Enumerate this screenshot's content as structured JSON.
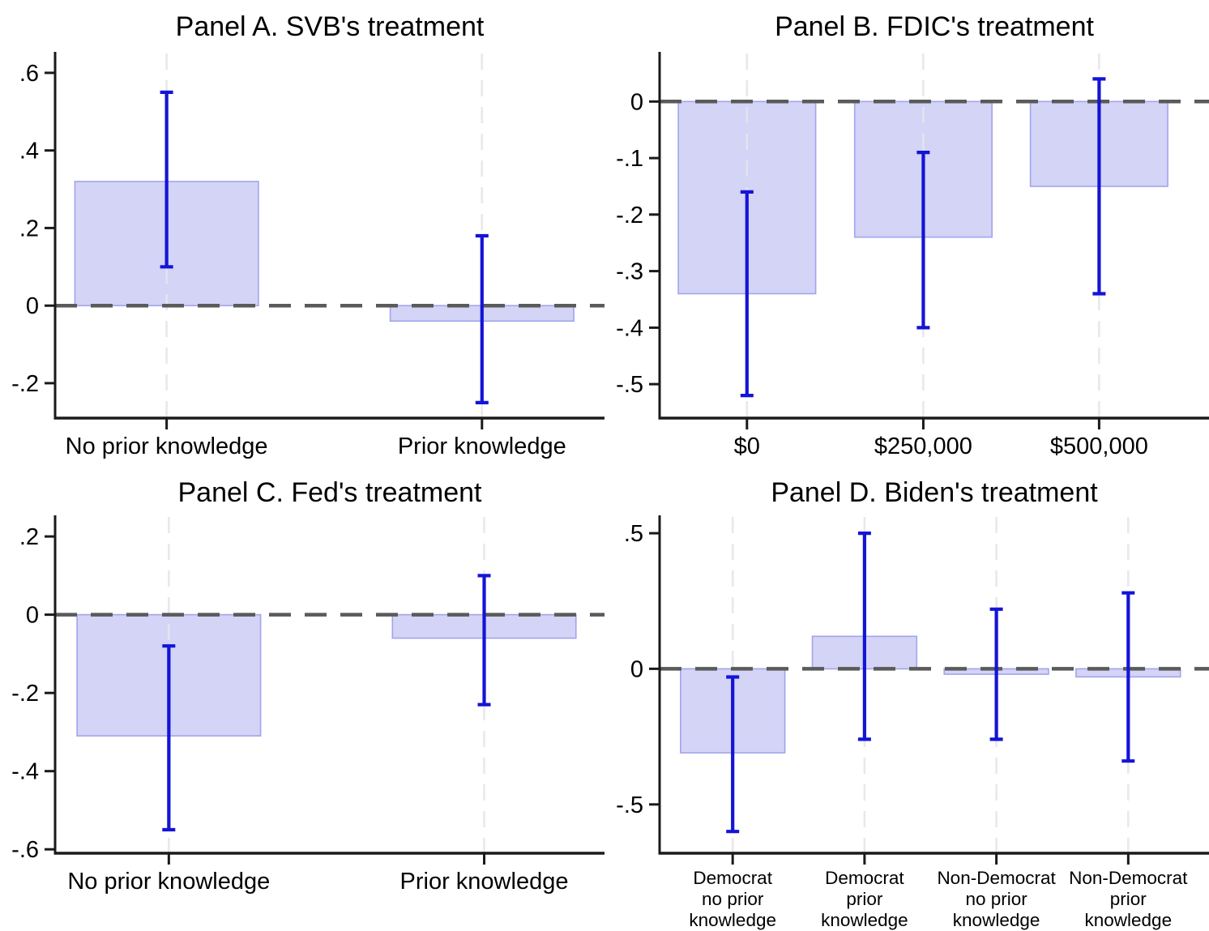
{
  "figure": {
    "background": "#ffffff",
    "panels_order": [
      "panel-a",
      "panel-b",
      "panel-c",
      "panel-d"
    ]
  },
  "style": {
    "bar_fill": "#d3d4f6",
    "bar_border": "#a2a4ec",
    "error_bar_color": "#1414d6",
    "zero_line_color": "#5a5a5a",
    "gridline_color": "#e6e6eb",
    "axis_color": "#1a1a1a",
    "text_color": "#000000"
  },
  "chart_data": [
    {
      "id": "panel-a",
      "type": "bar",
      "title": "Panel A. SVB's treatment",
      "categories": [
        "No prior knowledge",
        "Prior knowledge"
      ],
      "values": [
        0.32,
        -0.04
      ],
      "ci_low": [
        0.1,
        -0.25
      ],
      "ci_high": [
        0.55,
        0.18
      ],
      "ytick_values": [
        0.6,
        0.4,
        0.2,
        0,
        -0.2
      ],
      "ytick_labels": [
        ".6",
        ".4",
        ".2",
        "0",
        "-.2"
      ],
      "ylim": [
        -0.29,
        0.65
      ],
      "xlabel": "",
      "ylabel": "",
      "zero_reference_line": true,
      "grid": "vertical-dashed-at-categories",
      "legend": "none",
      "layout": {
        "row": 0,
        "col": 0,
        "centers_frac": [
          0.203,
          0.777
        ],
        "bar_halfwidth_frac": 0.167
      }
    },
    {
      "id": "panel-b",
      "type": "bar",
      "title": "Panel B. FDIC's treatment",
      "categories": [
        "$0",
        "$250,000",
        "$500,000"
      ],
      "values": [
        -0.34,
        -0.24,
        -0.15
      ],
      "ci_low": [
        -0.52,
        -0.4,
        -0.34
      ],
      "ci_high": [
        -0.16,
        -0.09,
        0.04
      ],
      "ytick_values": [
        0,
        -0.1,
        -0.2,
        -0.3,
        -0.4,
        -0.5
      ],
      "ytick_labels": [
        "0",
        "-.1",
        "-.2",
        "-.3",
        "-.4",
        "-.5"
      ],
      "ylim": [
        -0.56,
        0.085
      ],
      "xlabel": "",
      "ylabel": "",
      "zero_reference_line": true,
      "grid": "vertical-dashed-at-categories",
      "legend": "none",
      "layout": {
        "row": 0,
        "col": 1,
        "centers_frac": [
          0.159,
          0.48,
          0.8
        ],
        "bar_halfwidth_frac": 0.125
      }
    },
    {
      "id": "panel-c",
      "type": "bar",
      "title": "Panel C. Fed's treatment",
      "categories": [
        "No prior knowledge",
        "Prior knowledge"
      ],
      "values": [
        -0.31,
        -0.06
      ],
      "ci_low": [
        -0.55,
        -0.23
      ],
      "ci_high": [
        -0.08,
        0.1
      ],
      "ytick_values": [
        0.2,
        0,
        -0.2,
        -0.4,
        -0.6
      ],
      "ytick_labels": [
        ".2",
        "0",
        "-.2",
        "-.4",
        "-.6"
      ],
      "ylim": [
        -0.61,
        0.25
      ],
      "xlabel": "",
      "ylabel": "",
      "zero_reference_line": true,
      "grid": "vertical-dashed-at-categories",
      "legend": "none",
      "layout": {
        "row": 1,
        "col": 0,
        "centers_frac": [
          0.207,
          0.781
        ],
        "bar_halfwidth_frac": 0.167
      }
    },
    {
      "id": "panel-d",
      "type": "bar",
      "title": "Panel D. Biden's treatment",
      "categories": [
        "Democrat\nno prior\nknowledge",
        "Democrat\nprior\nknowledge",
        "Non-Democrat\nno prior\nknowledge",
        "Non-Democrat\nprior\nknowledge"
      ],
      "values": [
        -0.31,
        0.12,
        -0.02,
        -0.03
      ],
      "ci_low": [
        -0.6,
        -0.26,
        -0.26,
        -0.34
      ],
      "ci_high": [
        -0.03,
        0.5,
        0.22,
        0.28
      ],
      "ytick_values": [
        0.5,
        0,
        -0.5
      ],
      "ytick_labels": [
        ".5",
        "0",
        "-.5"
      ],
      "ylim": [
        -0.68,
        0.56
      ],
      "xlabel": "",
      "ylabel": "",
      "zero_reference_line": true,
      "grid": "vertical-dashed-at-categories",
      "legend": "none",
      "layout": {
        "row": 1,
        "col": 1,
        "centers_frac": [
          0.133,
          0.373,
          0.613,
          0.853
        ],
        "bar_halfwidth_frac": 0.095
      }
    }
  ]
}
